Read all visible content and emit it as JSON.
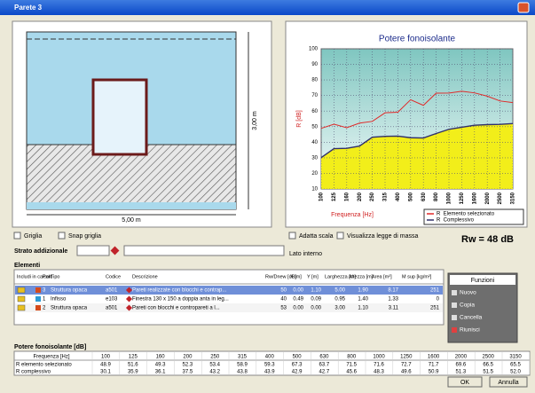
{
  "window": {
    "title": "Parete 3"
  },
  "drawing": {
    "height_label": "3,00 m",
    "width_label": "5,00 m"
  },
  "chart": {
    "type": "line",
    "title": "Potere fonoisolante",
    "y_label": "R [dB]",
    "x_label": "Frequenza [Hz]",
    "categories": [
      "100",
      "125",
      "160",
      "200",
      "250",
      "315",
      "400",
      "500",
      "630",
      "800",
      "1000",
      "1250",
      "1600",
      "2000",
      "2500",
      "3150"
    ],
    "series": [
      {
        "name": "R  Elemento selezionato",
        "color": "#e02828",
        "values": [
          48.9,
          51.6,
          49.3,
          52.3,
          53.4,
          58.9,
          59.3,
          67.3,
          63.7,
          71.5,
          71.6,
          72.7,
          71.7,
          69.6,
          66.5,
          65.5
        ],
        "value_labels": [
          "48.9",
          "51.6",
          "49.3",
          "52.3",
          "53.4",
          "58.9",
          "59.3",
          "67.3",
          "63.7",
          "71.5",
          "71.6",
          "72.7",
          "71.7",
          "69.6",
          "66.5",
          "65.5"
        ]
      },
      {
        "name": "R  Complessivo",
        "color": "#30306a",
        "fill": "#f2ee1a",
        "values": [
          30.1,
          35.9,
          36.1,
          37.5,
          43.2,
          43.8,
          43.9,
          42.9,
          42.7,
          45.6,
          48.3,
          49.6,
          50.9,
          51.3,
          51.5,
          52
        ],
        "value_labels": [
          "30.1",
          "35.9",
          "36.1",
          "37.5",
          "43.2",
          "43.8",
          "43.9",
          "42.9",
          "42.7",
          "45.6",
          "48.3",
          "49.6",
          "50.9",
          "51.3",
          "51.5",
          "52.0"
        ]
      }
    ],
    "ylim": [
      10,
      100
    ],
    "yticks": [
      10,
      20,
      30,
      40,
      50,
      60,
      70,
      80,
      90,
      100
    ],
    "grid": true
  },
  "rw": "Rw = 48 dB",
  "options": {
    "grid": "Griglia",
    "snap": "Snap griglia",
    "fit": "Adatta scala",
    "mass": "Visualizza legge di massa"
  },
  "layer": {
    "label": "Strato addizionale",
    "side": "Lato interno"
  },
  "elements": {
    "title": "Elementi",
    "columns": [
      "Includi in calcolo",
      "Part",
      "Tipo",
      "Codice",
      "Descrizione",
      "Rw/Dnew [dB]",
      "X [m]",
      "Y [m]",
      "Larghezza [m]",
      "Altezza [m]",
      "Area [m²]",
      "M sup [kg/m²]"
    ],
    "rows": [
      [
        "",
        "3",
        "Struttura opaca",
        "a501",
        "Pareti realizzate con blocchi e contrap...",
        "50",
        "0.00",
        "1.10",
        "5.00",
        "1.90",
        "8.17",
        "251"
      ],
      [
        "",
        "1",
        "Infisso",
        "e103",
        "Finestra 130 x 150 a doppia anta in leg...",
        "40",
        "0.49",
        "0.09",
        "0.95",
        "1.40",
        "1.33",
        "0"
      ],
      [
        "",
        "2",
        "Struttura opaca",
        "a501",
        "Pareti con blocchi e contropareti a l...",
        "53",
        "0.00",
        "0.00",
        "3.00",
        "1.10",
        "3.11",
        "251"
      ]
    ]
  },
  "functions": {
    "title": "Funzioni",
    "buttons": [
      "Nuovo",
      "Copia",
      "Cancella",
      "Riunisci"
    ]
  },
  "freq_table": {
    "title": "Potere fonoisolante [dB]",
    "header": "Frequenza [Hz]",
    "row_labels": [
      "R elemento selezionato",
      "R complessivo"
    ]
  },
  "buttons": {
    "ok": "OK",
    "cancel": "Annulla"
  }
}
